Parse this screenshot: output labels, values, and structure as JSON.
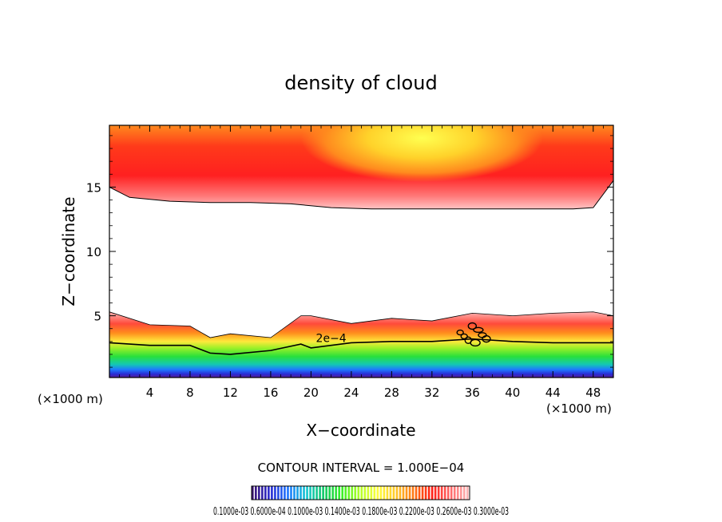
{
  "chart_data": {
    "type": "heatmap",
    "title": "density of cloud",
    "xlabel": "X−coordinate",
    "ylabel": "Z−coordinate",
    "x_unit_left": "(×1000 m)",
    "x_unit_right": "(×1000 m)",
    "xlim": [
      0,
      50
    ],
    "ylim": [
      0.2,
      19.8
    ],
    "x_ticks": [
      4,
      8,
      12,
      16,
      20,
      24,
      28,
      32,
      36,
      40,
      44,
      48
    ],
    "y_ticks": [
      5,
      10,
      15
    ],
    "contour_interval_text": "CONTOUR INTERVAL = 1.000E−04",
    "contour_label": "2e−4",
    "colorbar_label_text": "0.1000e-03 0.6000e-04 0.1000e-03 0.1400e-03 0.1800e-03 0.2200e-03 0.2600e-03 0.3000e-03",
    "colors": [
      "#3c1470",
      "#2a2ad2",
      "#1e78ff",
      "#16c8d2",
      "#12c864",
      "#3cf028",
      "#b4ff28",
      "#ffff3c",
      "#ffc828",
      "#ff7814",
      "#ff1e14",
      "#ff6464",
      "#ffb4b4"
    ],
    "upper_layer": {
      "base_z": [
        15.0,
        14.2,
        13.9,
        13.8,
        13.8,
        13.7,
        13.4,
        13.3,
        13.3,
        13.3,
        13.3,
        13.3,
        13.3,
        13.4,
        15.5
      ],
      "base_x": [
        0,
        2,
        6,
        10,
        14,
        18,
        22,
        26,
        30,
        34,
        38,
        42,
        46,
        48,
        50
      ]
    },
    "lower_layer": {
      "x": [
        0,
        4,
        8,
        10,
        12,
        16,
        19,
        20,
        24,
        28,
        32,
        36,
        40,
        44,
        48,
        50
      ],
      "top_z": [
        5.3,
        4.3,
        4.2,
        3.3,
        3.6,
        3.3,
        5.0,
        5.0,
        4.4,
        4.8,
        4.6,
        5.2,
        5.0,
        5.2,
        5.3,
        5.0
      ],
      "contour_2e4_z": [
        2.9,
        2.7,
        2.7,
        2.1,
        2.0,
        2.3,
        2.8,
        2.5,
        2.9,
        3.0,
        3.0,
        3.2,
        3.0,
        2.9,
        2.9,
        2.9
      ]
    }
  }
}
